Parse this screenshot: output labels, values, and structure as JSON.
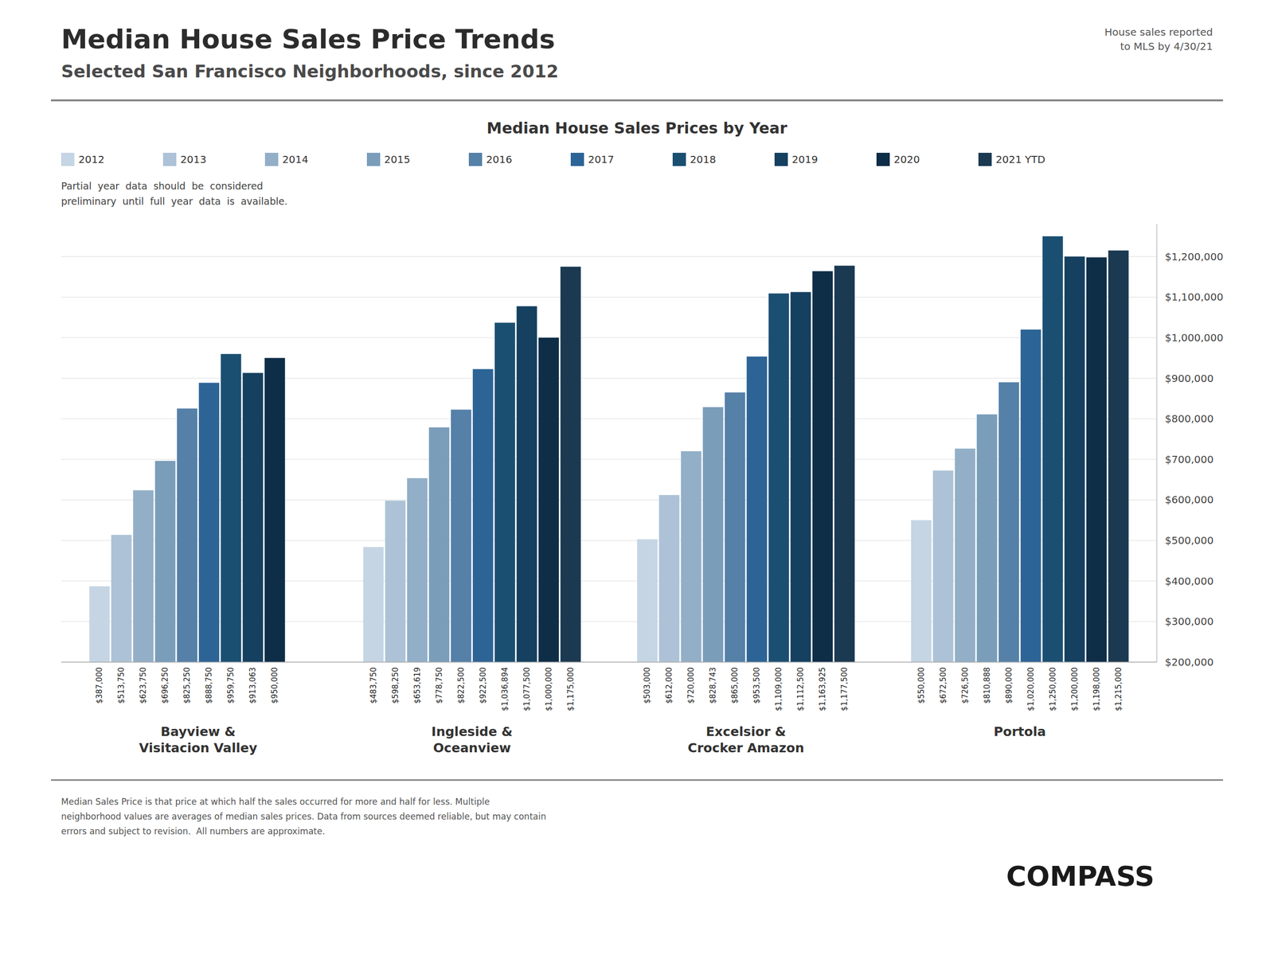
{
  "chart_data": {
    "type": "bar",
    "title": "Median House Sales Price Trends",
    "subtitle": "Selected San Francisco Neighborhoods, since 2012",
    "annotations": [
      "House sales reported\nto MLS by 4/30/21",
      "Median House Sales Prices by Year",
      "Partial  year  data  should  be  considered\npreliminary  until  full  year  data  is  available.",
      "Median Sales Price is that price at which half the sales occurred for more and half for less. Multiple\nneighborhood values are averages of median sales prices. Data from sources deemed reliable, but may contain\nerrors and subject to revision.  All numbers are approximate.",
      "COMPASS"
    ],
    "categories": [
      "Bayview &\nVisitacion Valley",
      "Ingleside &\nOceanview",
      "Excelsior &\nCrocker Amazon",
      "Portola"
    ],
    "series": [
      {
        "name": "2012",
        "color": "#c5d5e4",
        "values": [
          387000,
          483750,
          503000,
          550000
        ],
        "value_labels": [
          "$387,000",
          "$483,750",
          "$503,000",
          "$550,000"
        ]
      },
      {
        "name": "2013",
        "color": "#adc2d6",
        "values": [
          513750,
          598250,
          612000,
          672500
        ],
        "value_labels": [
          "$513,750",
          "$598,250",
          "$612,000",
          "$672,500"
        ]
      },
      {
        "name": "2014",
        "color": "#92afc7",
        "values": [
          623750,
          653619,
          720000,
          726500
        ],
        "value_labels": [
          "$623,750",
          "$653,619",
          "$720,000",
          "$726,500"
        ]
      },
      {
        "name": "2015",
        "color": "#7a9dba",
        "values": [
          696250,
          778750,
          828743,
          810888
        ],
        "value_labels": [
          "$696,250",
          "$778,750",
          "$828,743",
          "$810,888"
        ]
      },
      {
        "name": "2016",
        "color": "#5580a8",
        "values": [
          825250,
          822500,
          865000,
          890000
        ],
        "value_labels": [
          "$825,250",
          "$822,500",
          "$865,000",
          "$890,000"
        ]
      },
      {
        "name": "2017",
        "color": "#2d6496",
        "values": [
          888750,
          922500,
          953500,
          1020000
        ],
        "value_labels": [
          "$888,750",
          "$922,500",
          "$953,500",
          "$1,020,000"
        ]
      },
      {
        "name": "2018",
        "color": "#1b4f72",
        "values": [
          959750,
          1036894,
          1109000,
          1250000
        ],
        "value_labels": [
          "$959,750",
          "$1,036,894",
          "$1,109,000",
          "$1,250,000"
        ]
      },
      {
        "name": "2019",
        "color": "#154060",
        "values": [
          913063,
          1077500,
          1112500,
          1200000
        ],
        "value_labels": [
          "$913,063",
          "$1,077,500",
          "$1,112,500",
          "$1,200,000"
        ]
      },
      {
        "name": "2020",
        "color": "#0e2d47",
        "values": [
          950000,
          1000000,
          1163925,
          1198000
        ],
        "value_labels": [
          "$950,000",
          "$1,000,000",
          "$1,163,925",
          "$1,198,000"
        ]
      },
      {
        "name": "2021 YTD",
        "color": "#1b3a52",
        "values": [
          null,
          1175000,
          1177500,
          1215000
        ],
        "value_labels": [
          null,
          "$1,175,000",
          "$1,177,500",
          "$1,215,000"
        ]
      }
    ],
    "ylim": [
      200000,
      1280000
    ],
    "yticks": [
      {
        "value": 200000,
        "label": "$200,000"
      },
      {
        "value": 300000,
        "label": "$300,000"
      },
      {
        "value": 400000,
        "label": "$400,000"
      },
      {
        "value": 500000,
        "label": "$500,000"
      },
      {
        "value": 600000,
        "label": "$600,000"
      },
      {
        "value": 700000,
        "label": "$700,000"
      },
      {
        "value": 800000,
        "label": "$800,000"
      },
      {
        "value": 900000,
        "label": "$900,000"
      },
      {
        "value": 1000000,
        "label": "$1,000,000"
      },
      {
        "value": 1100000,
        "label": "$1,100,000"
      },
      {
        "value": 1200000,
        "label": "$1,200,000"
      }
    ],
    "grid": true,
    "legend": "top-left",
    "data_labels": true
  }
}
